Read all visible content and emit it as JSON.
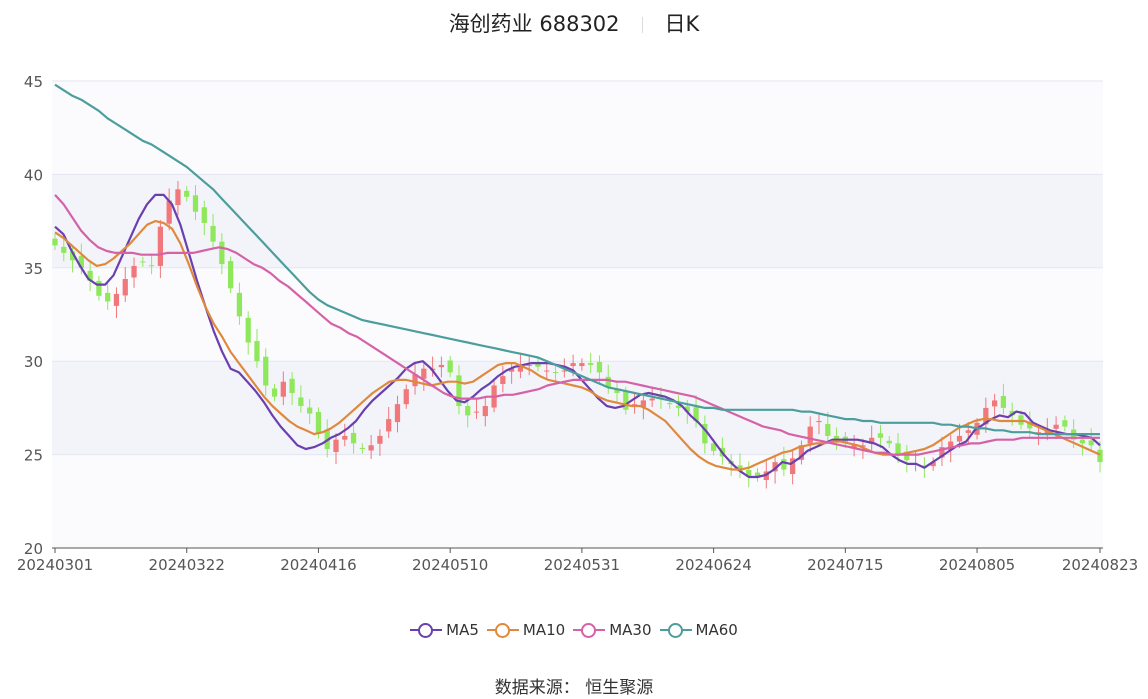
{
  "header": {
    "name": "海创药业 688302",
    "period": "日K"
  },
  "source": {
    "label": "数据来源：",
    "value": "恒生聚源"
  },
  "chart_data": {
    "type": "candlestick",
    "y_ticks": [
      "20",
      "25",
      "30",
      "35",
      "40",
      "45"
    ],
    "ylim": [
      20,
      45
    ],
    "x_tick_labels": [
      "20240301",
      "20240322",
      "20240416",
      "20240510",
      "20240531",
      "20240624",
      "20240715",
      "20240805",
      "20240823"
    ],
    "x_tick_index": [
      0,
      15,
      30,
      45,
      60,
      75,
      90,
      105,
      119
    ],
    "grid": "horizontal",
    "legend_position": "bottom",
    "up_color": "#f0787a",
    "down_color": "#8fe85c",
    "closes": [
      36.2,
      35.8,
      35.4,
      35.0,
      34.3,
      33.5,
      33.2,
      33.6,
      34.4,
      35.1,
      35.3,
      35.1,
      37.2,
      38.6,
      39.2,
      38.8,
      38.0,
      37.4,
      36.4,
      35.2,
      33.9,
      32.4,
      31.0,
      30.0,
      28.7,
      28.1,
      28.9,
      28.3,
      27.6,
      27.2,
      26.1,
      25.3,
      25.8,
      26.0,
      25.6,
      25.3,
      25.5,
      26.0,
      26.9,
      27.7,
      28.5,
      29.3,
      29.6,
      29.6,
      29.8,
      29.4,
      27.6,
      27.1,
      27.3,
      27.6,
      28.7,
      29.2,
      29.6,
      29.8,
      29.8,
      29.7,
      29.5,
      29.4,
      29.5,
      29.9,
      29.9,
      29.8,
      29.4,
      28.6,
      28.3,
      27.4,
      27.7,
      27.9,
      28.0,
      28.0,
      27.7,
      27.5,
      27.3,
      26.8,
      25.6,
      25.2,
      24.9,
      24.5,
      24.1,
      23.8,
      23.8,
      24.1,
      24.6,
      24.2,
      24.8,
      25.5,
      26.5,
      26.8,
      26.0,
      25.8,
      25.6,
      25.5,
      25.5,
      25.9,
      25.9,
      25.6,
      25.0,
      24.7,
      24.5,
      24.3,
      24.6,
      25.4,
      25.7,
      26.0,
      26.3,
      26.7,
      27.5,
      27.9,
      27.5,
      27.1,
      26.6,
      26.4,
      26.2,
      26.3,
      26.6,
      26.5,
      25.8,
      25.6,
      25.5,
      24.6
    ],
    "series": [
      {
        "name": "MA5",
        "color": "#6a3fae",
        "values": [
          37.2,
          36.8,
          35.9,
          35.1,
          34.4,
          34.1,
          34.1,
          34.6,
          35.6,
          36.6,
          37.6,
          38.4,
          38.9,
          38.9,
          38.4,
          37.3,
          35.8,
          34.3,
          32.9,
          31.6,
          30.5,
          29.6,
          29.4,
          28.9,
          28.4,
          27.8,
          27.1,
          26.5,
          26.0,
          25.5,
          25.3,
          25.4,
          25.6,
          25.9,
          26.1,
          26.4,
          26.8,
          27.4,
          27.9,
          28.3,
          28.7,
          29.1,
          29.6,
          29.9,
          30.0,
          29.6,
          29.0,
          28.4,
          27.9,
          27.8,
          28.1,
          28.5,
          28.8,
          29.2,
          29.5,
          29.7,
          29.8,
          29.9,
          29.9,
          29.9,
          29.8,
          29.7,
          29.5,
          29.0,
          28.5,
          28.0,
          27.6,
          27.5,
          27.6,
          27.9,
          28.2,
          28.3,
          28.2,
          28.1,
          27.9,
          27.6,
          27.1,
          26.7,
          26.2,
          25.6,
          25.0,
          24.5,
          24.1,
          23.8,
          23.8,
          23.9,
          24.2,
          24.6,
          24.5,
          24.8,
          25.2,
          25.4,
          25.6,
          25.8,
          25.8,
          25.8,
          25.8,
          25.7,
          25.6,
          25.4,
          25.0,
          24.7,
          24.5,
          24.5,
          24.3,
          24.6,
          24.9,
          25.2,
          25.5,
          25.7,
          26.3,
          26.6,
          26.9,
          27.1,
          27.0,
          27.3,
          27.2,
          26.7,
          26.5,
          26.3,
          26.2,
          26.1,
          26.1,
          26.0,
          25.9,
          25.5
        ],
        "closes_ref": "closes"
      },
      {
        "name": "MA10",
        "color": "#e0893c",
        "values": [
          36.9,
          36.6,
          36.2,
          35.8,
          35.4,
          35.1,
          35.2,
          35.5,
          35.9,
          36.3,
          36.8,
          37.3,
          37.5,
          37.4,
          37.1,
          36.3,
          35.2,
          34.0,
          32.9,
          32.0,
          31.3,
          30.5,
          29.9,
          29.3,
          28.7,
          28.1,
          27.6,
          27.2,
          26.8,
          26.5,
          26.3,
          26.1,
          26.2,
          26.4,
          26.7,
          27.1,
          27.5,
          27.9,
          28.3,
          28.6,
          28.9,
          29.0,
          29.0,
          28.9,
          28.8,
          28.7,
          28.8,
          28.9,
          28.9,
          28.8,
          28.9,
          29.2,
          29.5,
          29.8,
          29.9,
          29.9,
          29.7,
          29.5,
          29.2,
          29.0,
          28.9,
          28.8,
          28.7,
          28.6,
          28.4,
          28.1,
          27.9,
          27.8,
          27.7,
          27.6,
          27.6,
          27.4,
          27.1,
          26.8,
          26.3,
          25.8,
          25.3,
          24.9,
          24.6,
          24.4,
          24.3,
          24.2,
          24.2,
          24.3,
          24.5,
          24.7,
          24.9,
          25.1,
          25.2,
          25.4,
          25.5,
          25.6,
          25.6,
          25.7,
          25.7,
          25.6,
          25.5,
          25.3,
          25.1,
          25.0,
          25.0,
          25.0,
          25.1,
          25.2,
          25.3,
          25.5,
          25.8,
          26.1,
          26.4,
          26.6,
          26.8,
          26.9,
          26.9,
          26.8,
          26.8,
          26.8,
          26.8,
          26.6,
          26.4,
          26.2,
          26.0,
          25.8,
          25.6,
          25.4,
          25.2,
          25.0
        ],
        "closes_ref": "closes"
      },
      {
        "name": "MA30",
        "color": "#d561a7",
        "values": [
          38.9,
          38.4,
          37.7,
          37.0,
          36.5,
          36.1,
          35.9,
          35.8,
          35.8,
          35.8,
          35.7,
          35.7,
          35.7,
          35.8,
          35.8,
          35.8,
          35.8,
          35.9,
          36.0,
          36.1,
          36.0,
          35.8,
          35.5,
          35.2,
          35.0,
          34.7,
          34.3,
          34.0,
          33.6,
          33.2,
          32.8,
          32.4,
          32.0,
          31.8,
          31.5,
          31.3,
          31.0,
          30.7,
          30.4,
          30.1,
          29.8,
          29.5,
          29.2,
          28.9,
          28.6,
          28.3,
          28.1,
          28.0,
          28.0,
          28.0,
          28.1,
          28.1,
          28.2,
          28.2,
          28.3,
          28.4,
          28.5,
          28.7,
          28.8,
          28.9,
          29.0,
          29.0,
          29.0,
          29.0,
          29.0,
          28.9,
          28.9,
          28.8,
          28.7,
          28.6,
          28.5,
          28.4,
          28.3,
          28.2,
          28.1,
          27.9,
          27.7,
          27.5,
          27.3,
          27.1,
          26.9,
          26.7,
          26.5,
          26.4,
          26.3,
          26.1,
          26.0,
          25.9,
          25.8,
          25.7,
          25.6,
          25.5,
          25.4,
          25.3,
          25.2,
          25.1,
          25.1,
          25.0,
          25.0,
          25.0,
          25.0,
          25.1,
          25.2,
          25.3,
          25.4,
          25.5,
          25.6,
          25.6,
          25.7,
          25.8,
          25.8,
          25.8,
          25.9,
          25.9,
          25.9,
          25.9,
          25.9,
          25.9,
          25.9,
          25.9,
          25.9,
          25.9
        ],
        "closes_ref": "closes"
      },
      {
        "name": "MA60",
        "color": "#4c9e9c",
        "values": [
          44.8,
          44.5,
          44.2,
          44.0,
          43.7,
          43.4,
          43.0,
          42.7,
          42.4,
          42.1,
          41.8,
          41.6,
          41.3,
          41.0,
          40.7,
          40.4,
          40.0,
          39.6,
          39.2,
          38.7,
          38.2,
          37.7,
          37.2,
          36.7,
          36.2,
          35.7,
          35.2,
          34.7,
          34.2,
          33.7,
          33.3,
          33.0,
          32.8,
          32.6,
          32.4,
          32.2,
          32.1,
          32.0,
          31.9,
          31.8,
          31.7,
          31.6,
          31.5,
          31.4,
          31.3,
          31.2,
          31.1,
          31.0,
          30.9,
          30.8,
          30.7,
          30.6,
          30.5,
          30.4,
          30.3,
          30.2,
          30.0,
          29.8,
          29.6,
          29.4,
          29.2,
          29.0,
          28.8,
          28.6,
          28.5,
          28.4,
          28.3,
          28.2,
          28.1,
          28.0,
          27.9,
          27.8,
          27.7,
          27.6,
          27.5,
          27.5,
          27.4,
          27.4,
          27.4,
          27.4,
          27.4,
          27.4,
          27.4,
          27.4,
          27.4,
          27.3,
          27.3,
          27.2,
          27.1,
          27.0,
          26.9,
          26.9,
          26.8,
          26.8,
          26.7,
          26.7,
          26.7,
          26.7,
          26.7,
          26.7,
          26.7,
          26.6,
          26.6,
          26.5,
          26.5,
          26.4,
          26.4,
          26.3,
          26.3,
          26.2,
          26.2,
          26.2,
          26.1,
          26.1,
          26.1,
          26.1,
          26.1,
          26.1,
          26.1,
          26.1
        ],
        "closes_ref": "closes"
      }
    ]
  }
}
